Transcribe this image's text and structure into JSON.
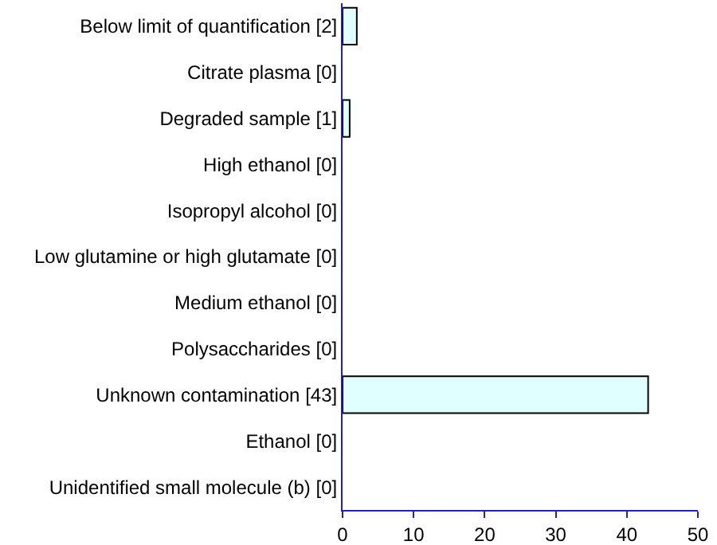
{
  "chart_data": {
    "type": "bar",
    "orientation": "horizontal",
    "categories": [
      "Below limit of quantification [2]",
      "Citrate plasma [0]",
      "Degraded sample [1]",
      "High ethanol [0]",
      "Isopropyl alcohol [0]",
      "Low glutamine or high glutamate [0]",
      "Medium ethanol [0]",
      "Polysaccharides [0]",
      "Unknown contamination [43]",
      "Ethanol [0]",
      "Unidentified small molecule (b) [0]"
    ],
    "values": [
      2,
      0,
      1,
      0,
      0,
      0,
      0,
      0,
      43,
      0,
      0
    ],
    "color": "#e0ffff",
    "xlim": [
      0,
      50
    ],
    "xticks": [
      0,
      10,
      20,
      30,
      40,
      50
    ],
    "grid": false,
    "legend": false
  }
}
